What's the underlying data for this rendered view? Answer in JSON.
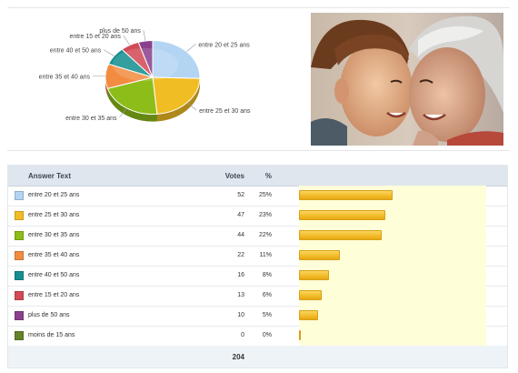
{
  "chart_data": [
    {
      "type": "pie",
      "labels": [
        "entre 20 et 25 ans",
        "entre 25 et 30 ans",
        "entre 30 et 35 ans",
        "entre 35 et 40 ans",
        "entre 40 et 50 ans",
        "entre 15 et 20 ans",
        "plus de 50 ans",
        "moins de 15 ans"
      ],
      "values": [
        52,
        47,
        44,
        22,
        16,
        13,
        10,
        0
      ],
      "colors": [
        "#b4d4f3",
        "#f1bd24",
        "#8cbd19",
        "#f28c41",
        "#148e8f",
        "#d24a55",
        "#8a3f8d",
        "#63822b"
      ]
    },
    {
      "type": "table",
      "columns": [
        "Answer Text",
        "Votes",
        "%"
      ],
      "rows": [
        {
          "answer": "entre 20 et 25 ans",
          "votes": "52",
          "percent": "25%",
          "fraction": 0.25,
          "color": "#b4d4f3"
        },
        {
          "answer": "entre 25 et 30 ans",
          "votes": "47",
          "percent": "23%",
          "fraction": 0.23,
          "color": "#f1bd24"
        },
        {
          "answer": "entre 30 et 35 ans",
          "votes": "44",
          "percent": "22%",
          "fraction": 0.22,
          "color": "#8cbd19"
        },
        {
          "answer": "entre 35 et 40 ans",
          "votes": "22",
          "percent": "11%",
          "fraction": 0.11,
          "color": "#f28c41"
        },
        {
          "answer": "entre 40 et 50 ans",
          "votes": "16",
          "percent": "8%",
          "fraction": 0.08,
          "color": "#148e8f"
        },
        {
          "answer": "entre 15 et 20 ans",
          "votes": "13",
          "percent": "6%",
          "fraction": 0.06,
          "color": "#d24a55"
        },
        {
          "answer": "plus de 50 ans",
          "votes": "10",
          "percent": "5%",
          "fraction": 0.05,
          "color": "#8a3f8d"
        },
        {
          "answer": "moins de 15 ans",
          "votes": "0",
          "percent": "0%",
          "fraction": 0.0,
          "color": "#63822b"
        }
      ],
      "total_votes": "204"
    }
  ]
}
